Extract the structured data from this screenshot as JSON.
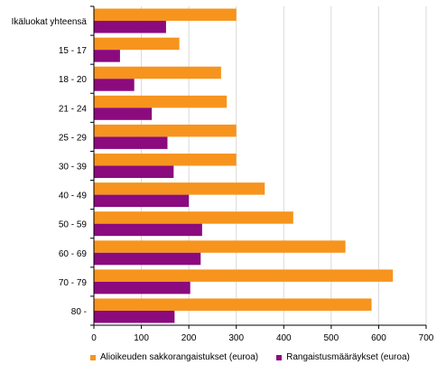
{
  "chart_data": {
    "type": "bar",
    "orientation": "horizontal",
    "categories": [
      "Ikäluokat yhteensä",
      "15 - 17",
      "18 - 20",
      "21 - 24",
      "25 - 29",
      "30 - 39",
      "40 - 49",
      "50 - 59",
      "60 - 69",
      "70 - 79",
      "80 -"
    ],
    "series": [
      {
        "name": "Alioikeuden sakkorangaistukset (euroa)",
        "color": "#F7941D",
        "values": [
          300,
          180,
          268,
          280,
          300,
          300,
          360,
          420,
          530,
          630,
          585
        ]
      },
      {
        "name": "Rangaistusmääräykset (euroa)",
        "color": "#8B0A7E",
        "values": [
          152,
          55,
          85,
          122,
          155,
          168,
          200,
          228,
          225,
          203,
          170
        ]
      }
    ],
    "xlim": [
      0,
      700
    ],
    "xticks": [
      0,
      100,
      200,
      300,
      400,
      500,
      600,
      700
    ],
    "grid": "vertical",
    "legend_position": "bottom"
  }
}
